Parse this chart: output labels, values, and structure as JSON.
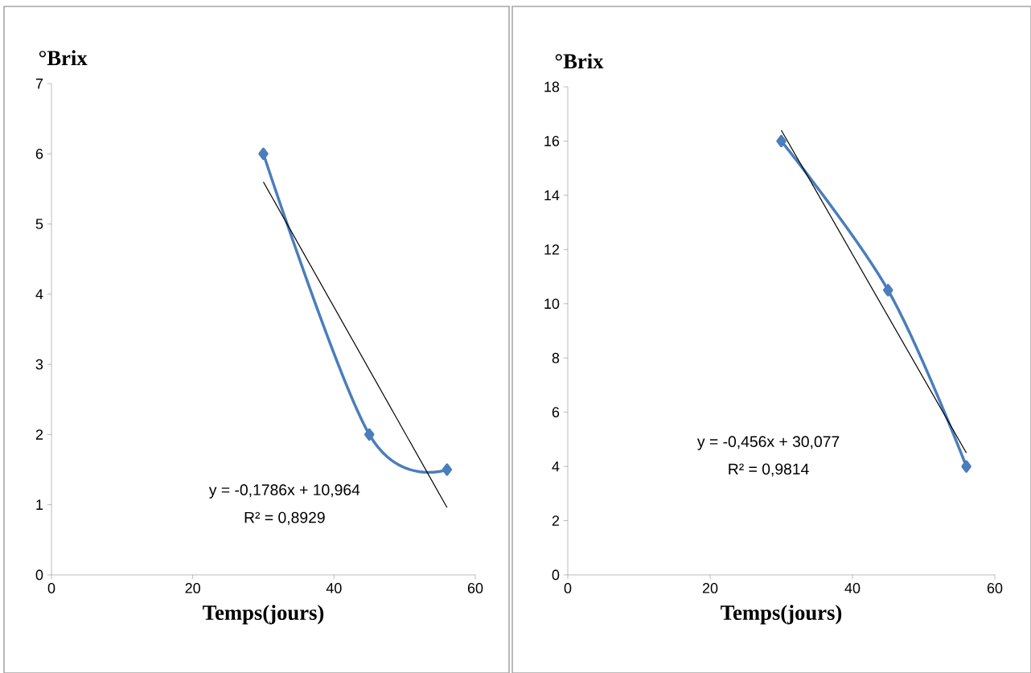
{
  "chart_data": [
    {
      "type": "line",
      "ylabel": "°Brix",
      "xlabel": "Temps(jours)",
      "xlim": [
        0,
        60
      ],
      "ylim": [
        0,
        7
      ],
      "xticks": [
        0,
        20,
        40,
        60
      ],
      "yticks": [
        0,
        1,
        2,
        3,
        4,
        5,
        6,
        7
      ],
      "series": [
        {
          "x": [
            30,
            45,
            56
          ],
          "values": [
            6,
            2,
            1.5
          ],
          "color": "#4a7ebb",
          "marker": "diamond"
        },
        {
          "x": [
            30,
            56
          ],
          "values": [
            5.6,
            0.96
          ],
          "color": "#000000",
          "marker": "none"
        }
      ],
      "annotations": [
        "y = -0,1786x + 10,964",
        "R² = 0,8929"
      ]
    },
    {
      "type": "line",
      "ylabel": "°Brix",
      "xlabel": "Temps(jours)",
      "xlim": [
        0,
        60
      ],
      "ylim": [
        0,
        18
      ],
      "xticks": [
        0,
        20,
        40,
        60
      ],
      "yticks": [
        0,
        2,
        4,
        6,
        8,
        10,
        12,
        14,
        16,
        18
      ],
      "series": [
        {
          "x": [
            30,
            45,
            56
          ],
          "values": [
            16,
            10.5,
            4
          ],
          "color": "#4a7ebb",
          "marker": "diamond"
        },
        {
          "x": [
            30,
            56
          ],
          "values": [
            16.4,
            4.5
          ],
          "color": "#000000",
          "marker": "none"
        }
      ],
      "annotations": [
        "y = -0,456x + 30,077",
        "R² = 0,9814"
      ]
    }
  ]
}
